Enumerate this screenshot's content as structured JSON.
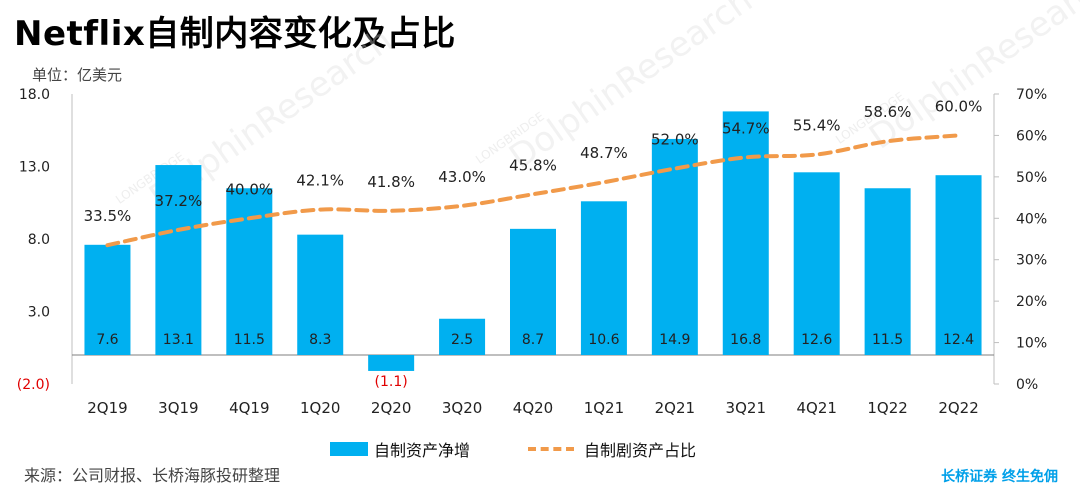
{
  "title": "Netflix自制内容变化及占比",
  "unit_label": "单位：亿美元",
  "source": "来源：公司财报、长桥海豚投研整理",
  "brand": "长桥证券 终生免佣",
  "watermark": "LONGBRIDGE DolphinResearch",
  "colors": {
    "bar": "#00b0f0",
    "line": "#f19a4a",
    "negative_label": "#e00000",
    "axis": "#bfbfbf"
  },
  "chart_data": {
    "type": "bar",
    "categories": [
      "2Q19",
      "3Q19",
      "4Q19",
      "1Q20",
      "2Q20",
      "3Q20",
      "4Q20",
      "1Q21",
      "2Q21",
      "3Q21",
      "4Q21",
      "1Q22",
      "2Q22"
    ],
    "series": [
      {
        "name": "自制资产净增",
        "type": "bar",
        "axis": "left",
        "values": [
          7.6,
          13.1,
          11.5,
          8.3,
          -1.1,
          2.5,
          8.7,
          10.6,
          14.9,
          16.8,
          12.6,
          11.5,
          12.4
        ],
        "labels": [
          "7.6",
          "13.1",
          "11.5",
          "8.3",
          "(1.1)",
          "2.5",
          "8.7",
          "10.6",
          "14.9",
          "16.8",
          "12.6",
          "11.5",
          "12.4"
        ]
      },
      {
        "name": "自制剧资产占比",
        "type": "line",
        "axis": "right",
        "style": "dashed",
        "values": [
          33.5,
          37.2,
          40.0,
          42.1,
          41.8,
          43.0,
          45.8,
          48.7,
          52.0,
          54.7,
          55.4,
          58.6,
          60.0
        ],
        "labels": [
          "33.5%",
          "37.2%",
          "40.0%",
          "42.1%",
          "41.8%",
          "43.0%",
          "45.8%",
          "48.7%",
          "52.0%",
          "54.7%",
          "55.4%",
          "58.6%",
          "60.0%"
        ]
      }
    ],
    "y_left": {
      "ylim": [
        -2.0,
        18.0
      ],
      "ticks": [
        -2,
        3,
        8,
        13,
        18
      ],
      "tick_labels": [
        "(2.0)",
        "3.0",
        "8.0",
        "13.0",
        "18.0"
      ]
    },
    "y_right": {
      "ylim": [
        0,
        70
      ],
      "ticks": [
        0,
        10,
        20,
        30,
        40,
        50,
        60,
        70
      ],
      "tick_labels": [
        "0%",
        "10%",
        "20%",
        "30%",
        "40%",
        "50%",
        "60%",
        "70%"
      ]
    },
    "legend": {
      "position": "bottom",
      "entries": [
        "自制资产净增",
        "自制剧资产占比"
      ]
    },
    "grid": false
  }
}
